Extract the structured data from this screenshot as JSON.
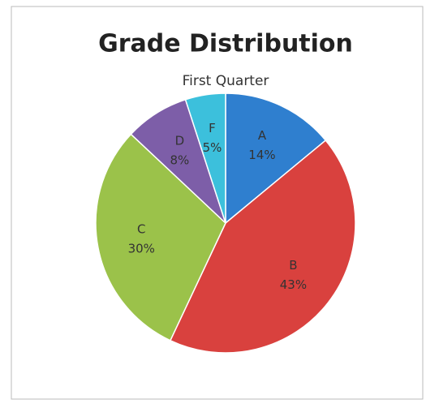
{
  "chart_data": {
    "type": "pie",
    "title": "Grade Distribution",
    "subtitle": "First Quarter",
    "categories": [
      "A",
      "B",
      "C",
      "D",
      "F"
    ],
    "values": [
      14,
      43,
      30,
      8,
      5
    ],
    "value_labels": [
      "14%",
      "43%",
      "30%",
      "8%",
      "5%"
    ],
    "colors": [
      "#2f7fcf",
      "#d9413e",
      "#9bc24a",
      "#7d5ea8",
      "#3cc0dc"
    ]
  }
}
